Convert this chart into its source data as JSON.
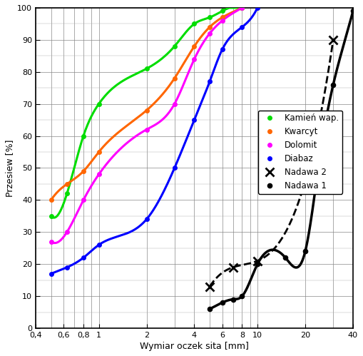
{
  "title": "",
  "xlabel": "Wymiar oczek sita [mm]",
  "ylabel": "Przesiew [%]",
  "xlim": [
    0.4,
    40
  ],
  "ylim": [
    0,
    100
  ],
  "series": {
    "Kamień wap.": {
      "x": [
        0.5,
        0.63,
        0.8,
        1.0,
        2.0,
        3.0,
        4.0,
        5.0,
        6.0,
        8.0
      ],
      "y": [
        35,
        42,
        60,
        70,
        81,
        88,
        95,
        97,
        99,
        100
      ],
      "color": "#00dd00",
      "linestyle": "-",
      "marker": "o",
      "linewidth": 2.2,
      "markersize": 4
    },
    "Kwarcyt": {
      "x": [
        0.5,
        0.63,
        0.8,
        1.0,
        2.0,
        3.0,
        4.0,
        5.0,
        6.0,
        8.0
      ],
      "y": [
        40,
        45,
        49,
        55,
        68,
        78,
        88,
        94,
        97,
        100
      ],
      "color": "#ff6600",
      "linestyle": "-",
      "marker": "o",
      "linewidth": 2.2,
      "markersize": 4
    },
    "Dolomit": {
      "x": [
        0.5,
        0.63,
        0.8,
        1.0,
        2.0,
        3.0,
        4.0,
        5.0,
        6.0,
        8.0
      ],
      "y": [
        27,
        30,
        40,
        48,
        62,
        70,
        84,
        92,
        96,
        100
      ],
      "color": "#ff00ff",
      "linestyle": "-",
      "marker": "o",
      "linewidth": 2.2,
      "markersize": 4
    },
    "Diabaz": {
      "x": [
        0.5,
        0.63,
        0.8,
        1.0,
        2.0,
        3.0,
        4.0,
        5.0,
        6.0,
        8.0,
        10.0
      ],
      "y": [
        17,
        19,
        22,
        26,
        34,
        50,
        65,
        77,
        87,
        94,
        100
      ],
      "color": "#0000ff",
      "linestyle": "-",
      "marker": "o",
      "linewidth": 2.2,
      "markersize": 4
    },
    "Nadawa 2": {
      "x": [
        5.0,
        7.0,
        10.0,
        20.0,
        30.0
      ],
      "y": [
        13,
        19,
        21,
        46,
        90
      ],
      "color": "#000000",
      "linestyle": "--",
      "marker": "x",
      "linewidth": 2.0,
      "markersize": 8,
      "markeredgewidth": 2
    },
    "Nadawa 1": {
      "x": [
        5.0,
        6.0,
        7.0,
        8.0,
        10.0,
        15.0,
        20.0,
        25.0,
        30.0,
        40.0
      ],
      "y": [
        6,
        8,
        9,
        10,
        20,
        22,
        24,
        55,
        76,
        99
      ],
      "color": "#000000",
      "linestyle": "-",
      "marker": "o",
      "linewidth": 2.5,
      "markersize": 4,
      "markeredgewidth": 1.5
    }
  },
  "xtick_positions": [
    0.4,
    0.6,
    0.8,
    1.0,
    2.0,
    4.0,
    6.0,
    8.0,
    10.0,
    20.0,
    40.0
  ],
  "xtick_labels": [
    "0,4",
    "0,6",
    "0,8",
    "1",
    "2",
    "4",
    "6",
    "8",
    "10",
    "20",
    "40"
  ],
  "yticks": [
    0,
    10,
    20,
    30,
    40,
    50,
    60,
    70,
    80,
    90,
    100
  ],
  "grid_color": "#888888",
  "minor_grid_color": "#aaaaaa",
  "background_color": "#ffffff",
  "legend_loc": "center right",
  "legend_fontsize": 8.5,
  "figsize": [
    5.09,
    4.99
  ],
  "dpi": 100
}
